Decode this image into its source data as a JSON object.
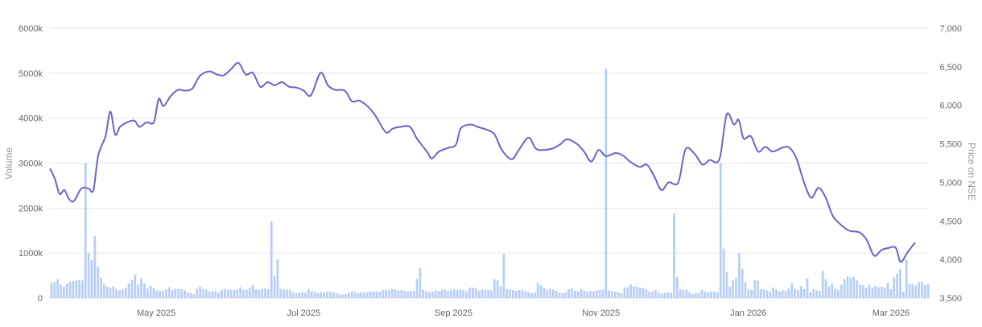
{
  "chart_data": {
    "type": "bar+line",
    "title": "",
    "colors": {
      "volume": "#b8cff5",
      "price": "#6c63c8",
      "grid": "#e6e6e6"
    },
    "y_left": {
      "label": "Volume",
      "ticks": [
        "0",
        "1000k",
        "2000k",
        "3000k",
        "4000k",
        "5000k",
        "6000k"
      ],
      "range": [
        0,
        6000000
      ]
    },
    "y_right": {
      "label": "Price on NSE",
      "ticks": [
        "3,500",
        "4,000",
        "4,500",
        "5,000",
        "5,500",
        "6,000",
        "6,500",
        "7,000"
      ],
      "range": [
        3500,
        7000
      ]
    },
    "x_ticks": [
      "May 2025",
      "Jul 2025",
      "Sep 2025",
      "Nov 2025",
      "Jan 2026",
      "Mar 2026"
    ],
    "x_range": [
      "2025-04-01",
      "2026-03-31"
    ],
    "grid": true,
    "series": [
      {
        "name": "Price",
        "kind": "line",
        "points": [
          [
            "2025-04-01",
            5180
          ],
          [
            "2025-04-03",
            5050
          ],
          [
            "2025-04-05",
            4850
          ],
          [
            "2025-04-07",
            4900
          ],
          [
            "2025-04-09",
            4780
          ],
          [
            "2025-04-11",
            4760
          ],
          [
            "2025-04-14",
            4920
          ],
          [
            "2025-04-17",
            4920
          ],
          [
            "2025-04-19",
            4900
          ],
          [
            "2025-04-21",
            5350
          ],
          [
            "2025-04-24",
            5600
          ],
          [
            "2025-04-26",
            5920
          ],
          [
            "2025-04-28",
            5620
          ],
          [
            "2025-04-30",
            5720
          ],
          [
            "2025-05-03",
            5780
          ],
          [
            "2025-05-06",
            5800
          ],
          [
            "2025-05-08",
            5720
          ],
          [
            "2025-05-11",
            5780
          ],
          [
            "2025-05-14",
            5780
          ],
          [
            "2025-05-16",
            6080
          ],
          [
            "2025-05-18",
            5990
          ],
          [
            "2025-05-21",
            6120
          ],
          [
            "2025-05-24",
            6200
          ],
          [
            "2025-05-27",
            6190
          ],
          [
            "2025-05-30",
            6220
          ],
          [
            "2025-06-02",
            6380
          ],
          [
            "2025-06-06",
            6440
          ],
          [
            "2025-06-09",
            6400
          ],
          [
            "2025-06-12",
            6390
          ],
          [
            "2025-06-15",
            6470
          ],
          [
            "2025-06-18",
            6550
          ],
          [
            "2025-06-21",
            6400
          ],
          [
            "2025-06-24",
            6420
          ],
          [
            "2025-06-27",
            6240
          ],
          [
            "2025-06-30",
            6300
          ],
          [
            "2025-07-03",
            6260
          ],
          [
            "2025-07-06",
            6300
          ],
          [
            "2025-07-09",
            6240
          ],
          [
            "2025-07-12",
            6230
          ],
          [
            "2025-07-15",
            6190
          ],
          [
            "2025-07-18",
            6130
          ],
          [
            "2025-07-22",
            6420
          ],
          [
            "2025-07-25",
            6260
          ],
          [
            "2025-07-28",
            6200
          ],
          [
            "2025-08-01",
            6190
          ],
          [
            "2025-08-04",
            6050
          ],
          [
            "2025-08-07",
            6060
          ],
          [
            "2025-08-11",
            5970
          ],
          [
            "2025-08-14",
            5850
          ],
          [
            "2025-08-18",
            5650
          ],
          [
            "2025-08-21",
            5700
          ],
          [
            "2025-08-24",
            5720
          ],
          [
            "2025-08-28",
            5720
          ],
          [
            "2025-08-31",
            5560
          ],
          [
            "2025-09-04",
            5400
          ],
          [
            "2025-09-06",
            5310
          ],
          [
            "2025-09-09",
            5400
          ],
          [
            "2025-09-13",
            5450
          ],
          [
            "2025-09-16",
            5490
          ],
          [
            "2025-09-18",
            5700
          ],
          [
            "2025-09-22",
            5750
          ],
          [
            "2025-09-25",
            5720
          ],
          [
            "2025-09-29",
            5680
          ],
          [
            "2025-10-02",
            5620
          ],
          [
            "2025-10-05",
            5420
          ],
          [
            "2025-10-09",
            5300
          ],
          [
            "2025-10-12",
            5420
          ],
          [
            "2025-10-16",
            5580
          ],
          [
            "2025-10-19",
            5440
          ],
          [
            "2025-10-22",
            5420
          ],
          [
            "2025-10-26",
            5440
          ],
          [
            "2025-10-29",
            5490
          ],
          [
            "2025-11-01",
            5560
          ],
          [
            "2025-11-05",
            5500
          ],
          [
            "2025-11-08",
            5400
          ],
          [
            "2025-11-11",
            5270
          ],
          [
            "2025-11-14",
            5420
          ],
          [
            "2025-11-17",
            5340
          ],
          [
            "2025-11-21",
            5380
          ],
          [
            "2025-11-24",
            5350
          ],
          [
            "2025-11-27",
            5270
          ],
          [
            "2025-12-01",
            5200
          ],
          [
            "2025-12-04",
            5230
          ],
          [
            "2025-12-07",
            5080
          ],
          [
            "2025-12-10",
            4900
          ],
          [
            "2025-12-13",
            5000
          ],
          [
            "2025-12-17",
            5000
          ],
          [
            "2025-12-20",
            5430
          ],
          [
            "2025-12-24",
            5360
          ],
          [
            "2025-12-27",
            5230
          ],
          [
            "2025-12-30",
            5290
          ],
          [
            "2026-01-03",
            5300
          ],
          [
            "2026-01-06",
            5880
          ],
          [
            "2026-01-09",
            5750
          ],
          [
            "2026-01-11",
            5810
          ],
          [
            "2026-01-13",
            5570
          ],
          [
            "2026-01-16",
            5600
          ],
          [
            "2026-01-19",
            5400
          ],
          [
            "2026-01-22",
            5460
          ],
          [
            "2026-01-25",
            5400
          ],
          [
            "2026-01-29",
            5450
          ],
          [
            "2026-02-01",
            5450
          ],
          [
            "2026-02-04",
            5300
          ],
          [
            "2026-02-07",
            5000
          ],
          [
            "2026-02-10",
            4800
          ],
          [
            "2026-02-13",
            4930
          ],
          [
            "2026-02-16",
            4800
          ],
          [
            "2026-02-19",
            4560
          ],
          [
            "2026-02-23",
            4430
          ],
          [
            "2026-02-26",
            4370
          ],
          [
            "2026-03-02",
            4350
          ],
          [
            "2026-03-05",
            4250
          ],
          [
            "2026-03-08",
            4050
          ],
          [
            "2026-03-11",
            4120
          ],
          [
            "2026-03-14",
            4150
          ],
          [
            "2026-03-17",
            4150
          ],
          [
            "2026-03-19",
            3970
          ],
          [
            "2026-03-22",
            4100
          ],
          [
            "2026-03-25",
            4220
          ]
        ]
      },
      {
        "name": "Volume",
        "kind": "bar",
        "values": [
          340000,
          360000,
          420000,
          300000,
          250000,
          320000,
          360000,
          380000,
          390000,
          400000,
          390000,
          3000000,
          1000000,
          850000,
          1380000,
          700000,
          450000,
          300000,
          250000,
          230000,
          260000,
          200000,
          170000,
          190000,
          230000,
          320000,
          400000,
          520000,
          300000,
          440000,
          330000,
          210000,
          270000,
          220000,
          170000,
          160000,
          160000,
          190000,
          240000,
          180000,
          210000,
          200000,
          200000,
          170000,
          120000,
          110000,
          90000,
          210000,
          250000,
          200000,
          190000,
          140000,
          150000,
          150000,
          120000,
          180000,
          200000,
          190000,
          180000,
          180000,
          190000,
          240000,
          190000,
          180000,
          230000,
          290000,
          190000,
          180000,
          200000,
          210000,
          200000,
          1700000,
          480000,
          860000,
          200000,
          190000,
          180000,
          180000,
          130000,
          110000,
          120000,
          130000,
          120000,
          190000,
          150000,
          140000,
          110000,
          130000,
          120000,
          140000,
          140000,
          120000,
          110000,
          90000,
          80000,
          90000,
          120000,
          150000,
          130000,
          110000,
          130000,
          120000,
          130000,
          140000,
          140000,
          150000,
          140000,
          180000,
          180000,
          170000,
          200000,
          190000,
          170000,
          180000,
          160000,
          150000,
          160000,
          150000,
          430000,
          670000,
          180000,
          150000,
          130000,
          140000,
          170000,
          160000,
          180000,
          190000,
          160000,
          180000,
          190000,
          180000,
          190000,
          170000,
          150000,
          230000,
          230000,
          220000,
          160000,
          190000,
          180000,
          180000,
          170000,
          420000,
          400000,
          260000,
          980000,
          200000,
          190000,
          170000,
          160000,
          180000,
          180000,
          150000,
          130000,
          110000,
          120000,
          340000,
          290000,
          230000,
          180000,
          200000,
          190000,
          160000,
          120000,
          110000,
          130000,
          200000,
          220000,
          170000,
          150000,
          200000,
          160000,
          140000,
          160000,
          150000,
          170000,
          170000,
          190000,
          5100000,
          170000,
          150000,
          140000,
          130000,
          110000,
          230000,
          240000,
          300000,
          260000,
          250000,
          230000,
          220000,
          190000,
          140000,
          140000,
          180000,
          120000,
          100000,
          110000,
          130000,
          120000,
          1880000,
          470000,
          190000,
          180000,
          190000,
          130000,
          90000,
          110000,
          120000,
          180000,
          140000,
          120000,
          140000,
          140000,
          120000,
          3000000,
          1100000,
          570000,
          250000,
          390000,
          450000,
          1000000,
          650000,
          350000,
          190000,
          180000,
          400000,
          380000,
          200000,
          190000,
          170000,
          140000,
          230000,
          190000,
          150000,
          170000,
          160000,
          210000,
          330000,
          200000,
          180000,
          270000,
          200000,
          440000,
          130000,
          200000,
          170000,
          160000,
          600000,
          420000,
          260000,
          320000,
          200000,
          180000,
          300000,
          420000,
          480000,
          450000,
          470000,
          390000,
          300000,
          290000,
          230000,
          300000,
          230000,
          270000,
          240000,
          250000,
          230000,
          340000,
          200000,
          460000,
          540000,
          640000,
          140000,
          850000,
          320000,
          300000,
          280000,
          350000,
          360000,
          290000,
          310000
        ]
      }
    ]
  }
}
